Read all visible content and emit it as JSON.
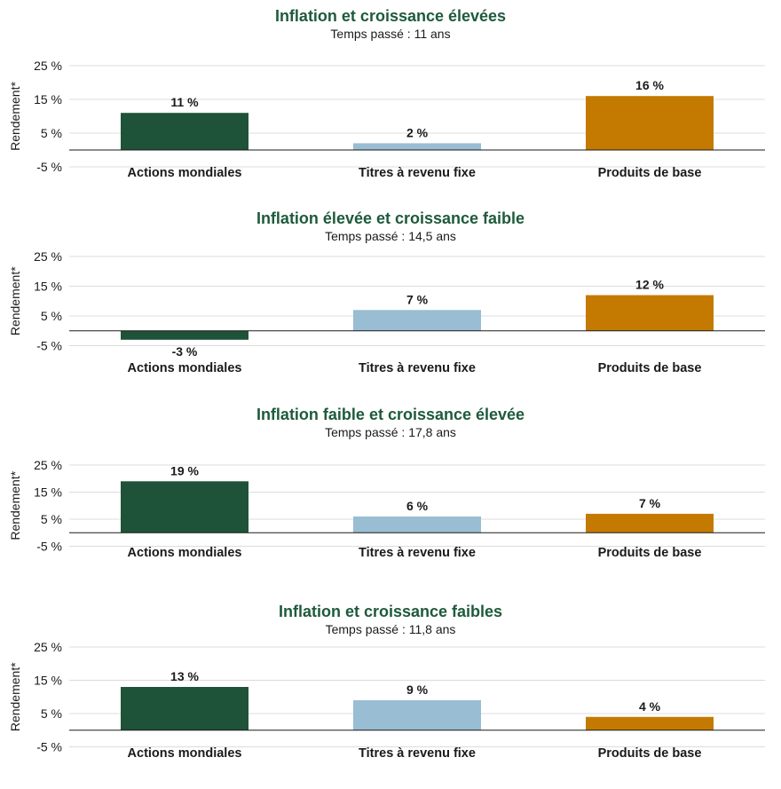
{
  "colors": {
    "title": "#1e5a3c",
    "series": [
      "#1e5339",
      "#99bdd3",
      "#c47a00"
    ],
    "grid": "#dcdcdc",
    "axis": "#1a1a1a"
  },
  "chart_data": [
    {
      "type": "bar",
      "title": "Inflation et croissance élevées",
      "subtitle": "Temps passé : 11 ans",
      "ylabel": "Rendement*",
      "ylim": [
        -5,
        25
      ],
      "yticks": [
        25,
        15,
        5,
        -5
      ],
      "ytick_labels": [
        "25 %",
        "15 %",
        "5 %",
        "-5 %"
      ],
      "categories": [
        "Actions mondiales",
        "Titres à revenu fixe",
        "Produits de base"
      ],
      "values": [
        11,
        2,
        16
      ],
      "data_labels": [
        "11 %",
        "2 %",
        "16 %"
      ]
    },
    {
      "type": "bar",
      "title": "Inflation élevée et croissance faible",
      "subtitle": "Temps passé : 14,5 ans",
      "ylabel": "Rendement*",
      "ylim": [
        -5,
        25
      ],
      "yticks": [
        25,
        15,
        5,
        -5
      ],
      "ytick_labels": [
        "25 %",
        "15 %",
        "5 %",
        "-5 %"
      ],
      "categories": [
        "Actions mondiales",
        "Titres à revenu fixe",
        "Produits de base"
      ],
      "values": [
        -3,
        7,
        12
      ],
      "data_labels": [
        "-3 %",
        "7 %",
        "12 %"
      ]
    },
    {
      "type": "bar",
      "title": "Inflation faible et croissance élevée",
      "subtitle": "Temps passé : 17,8 ans",
      "ylabel": "Rendement*",
      "ylim": [
        -5,
        25
      ],
      "yticks": [
        25,
        15,
        5,
        -5
      ],
      "ytick_labels": [
        "25 %",
        "15 %",
        "5 %",
        "-5 %"
      ],
      "categories": [
        "Actions mondiales",
        "Titres à revenu fixe",
        "Produits de base"
      ],
      "values": [
        19,
        6,
        7
      ],
      "data_labels": [
        "19 %",
        "6 %",
        "7 %"
      ]
    },
    {
      "type": "bar",
      "title": "Inflation et croissance faibles",
      "subtitle": "Temps passé : 11,8 ans",
      "ylabel": "Rendement*",
      "ylim": [
        -5,
        25
      ],
      "yticks": [
        25,
        15,
        5,
        -5
      ],
      "ytick_labels": [
        "25 %",
        "15 %",
        "5 %",
        "-5 %"
      ],
      "categories": [
        "Actions mondiales",
        "Titres à revenu fixe",
        "Produits de base"
      ],
      "values": [
        13,
        9,
        4
      ],
      "data_labels": [
        "13 %",
        "9 %",
        "4 %"
      ]
    }
  ]
}
